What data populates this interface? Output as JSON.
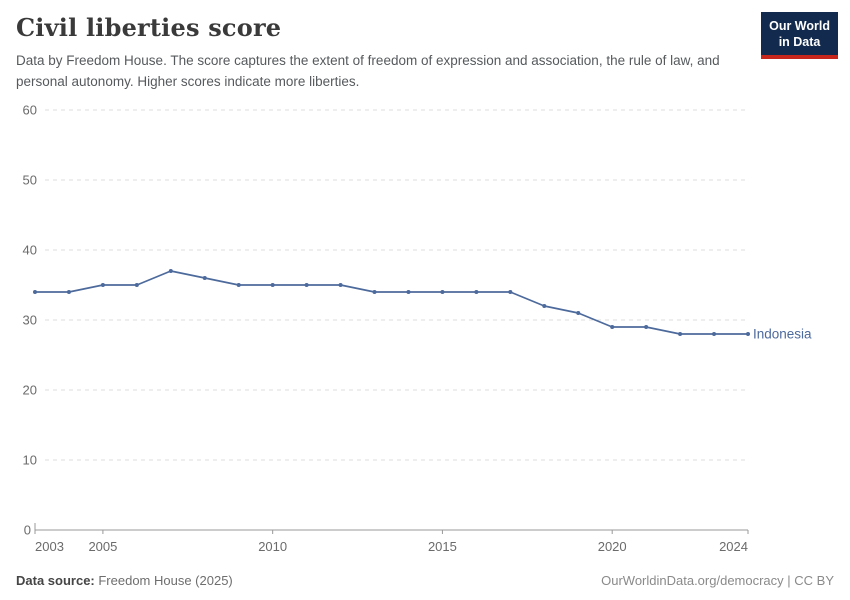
{
  "header": {
    "title": "Civil liberties score",
    "subtitle": "Data by Freedom House. The score captures the extent of freedom of expression and association, the rule of law, and personal autonomy. Higher scores indicate more liberties.",
    "logo": {
      "line1": "Our World",
      "line2": "in Data"
    }
  },
  "chart_data": {
    "type": "line",
    "title": "Civil liberties score",
    "x": [
      2003,
      2004,
      2005,
      2006,
      2007,
      2008,
      2009,
      2010,
      2011,
      2012,
      2013,
      2014,
      2015,
      2016,
      2017,
      2018,
      2019,
      2020,
      2021,
      2022,
      2023,
      2024
    ],
    "series": [
      {
        "name": "Indonesia",
        "values": [
          34,
          34,
          35,
          35,
          37,
          36,
          35,
          35,
          35,
          35,
          34,
          34,
          34,
          34,
          34,
          32,
          31,
          29,
          29,
          28,
          28,
          28
        ],
        "color": "#4d6a9c"
      }
    ],
    "xlabel": "",
    "ylabel": "",
    "ylim": [
      0,
      60
    ],
    "yticks": [
      0,
      10,
      20,
      30,
      40,
      50,
      60
    ],
    "xticks": [
      2003,
      2005,
      2010,
      2015,
      2020,
      2024
    ],
    "grid": "horizontal-dashed",
    "legend": "end-of-line-label"
  },
  "colors": {
    "line": "#4d6a9c",
    "grid": "#dedede",
    "axis": "#999999",
    "tick_text": "#6b6b6b",
    "logo_bg": "#122a4d",
    "logo_red": "#c7261d"
  },
  "footer": {
    "datasource_label": "Data source:",
    "datasource_value": " Freedom House (2025)",
    "credit": "OurWorldinData.org/democracy | CC BY"
  }
}
